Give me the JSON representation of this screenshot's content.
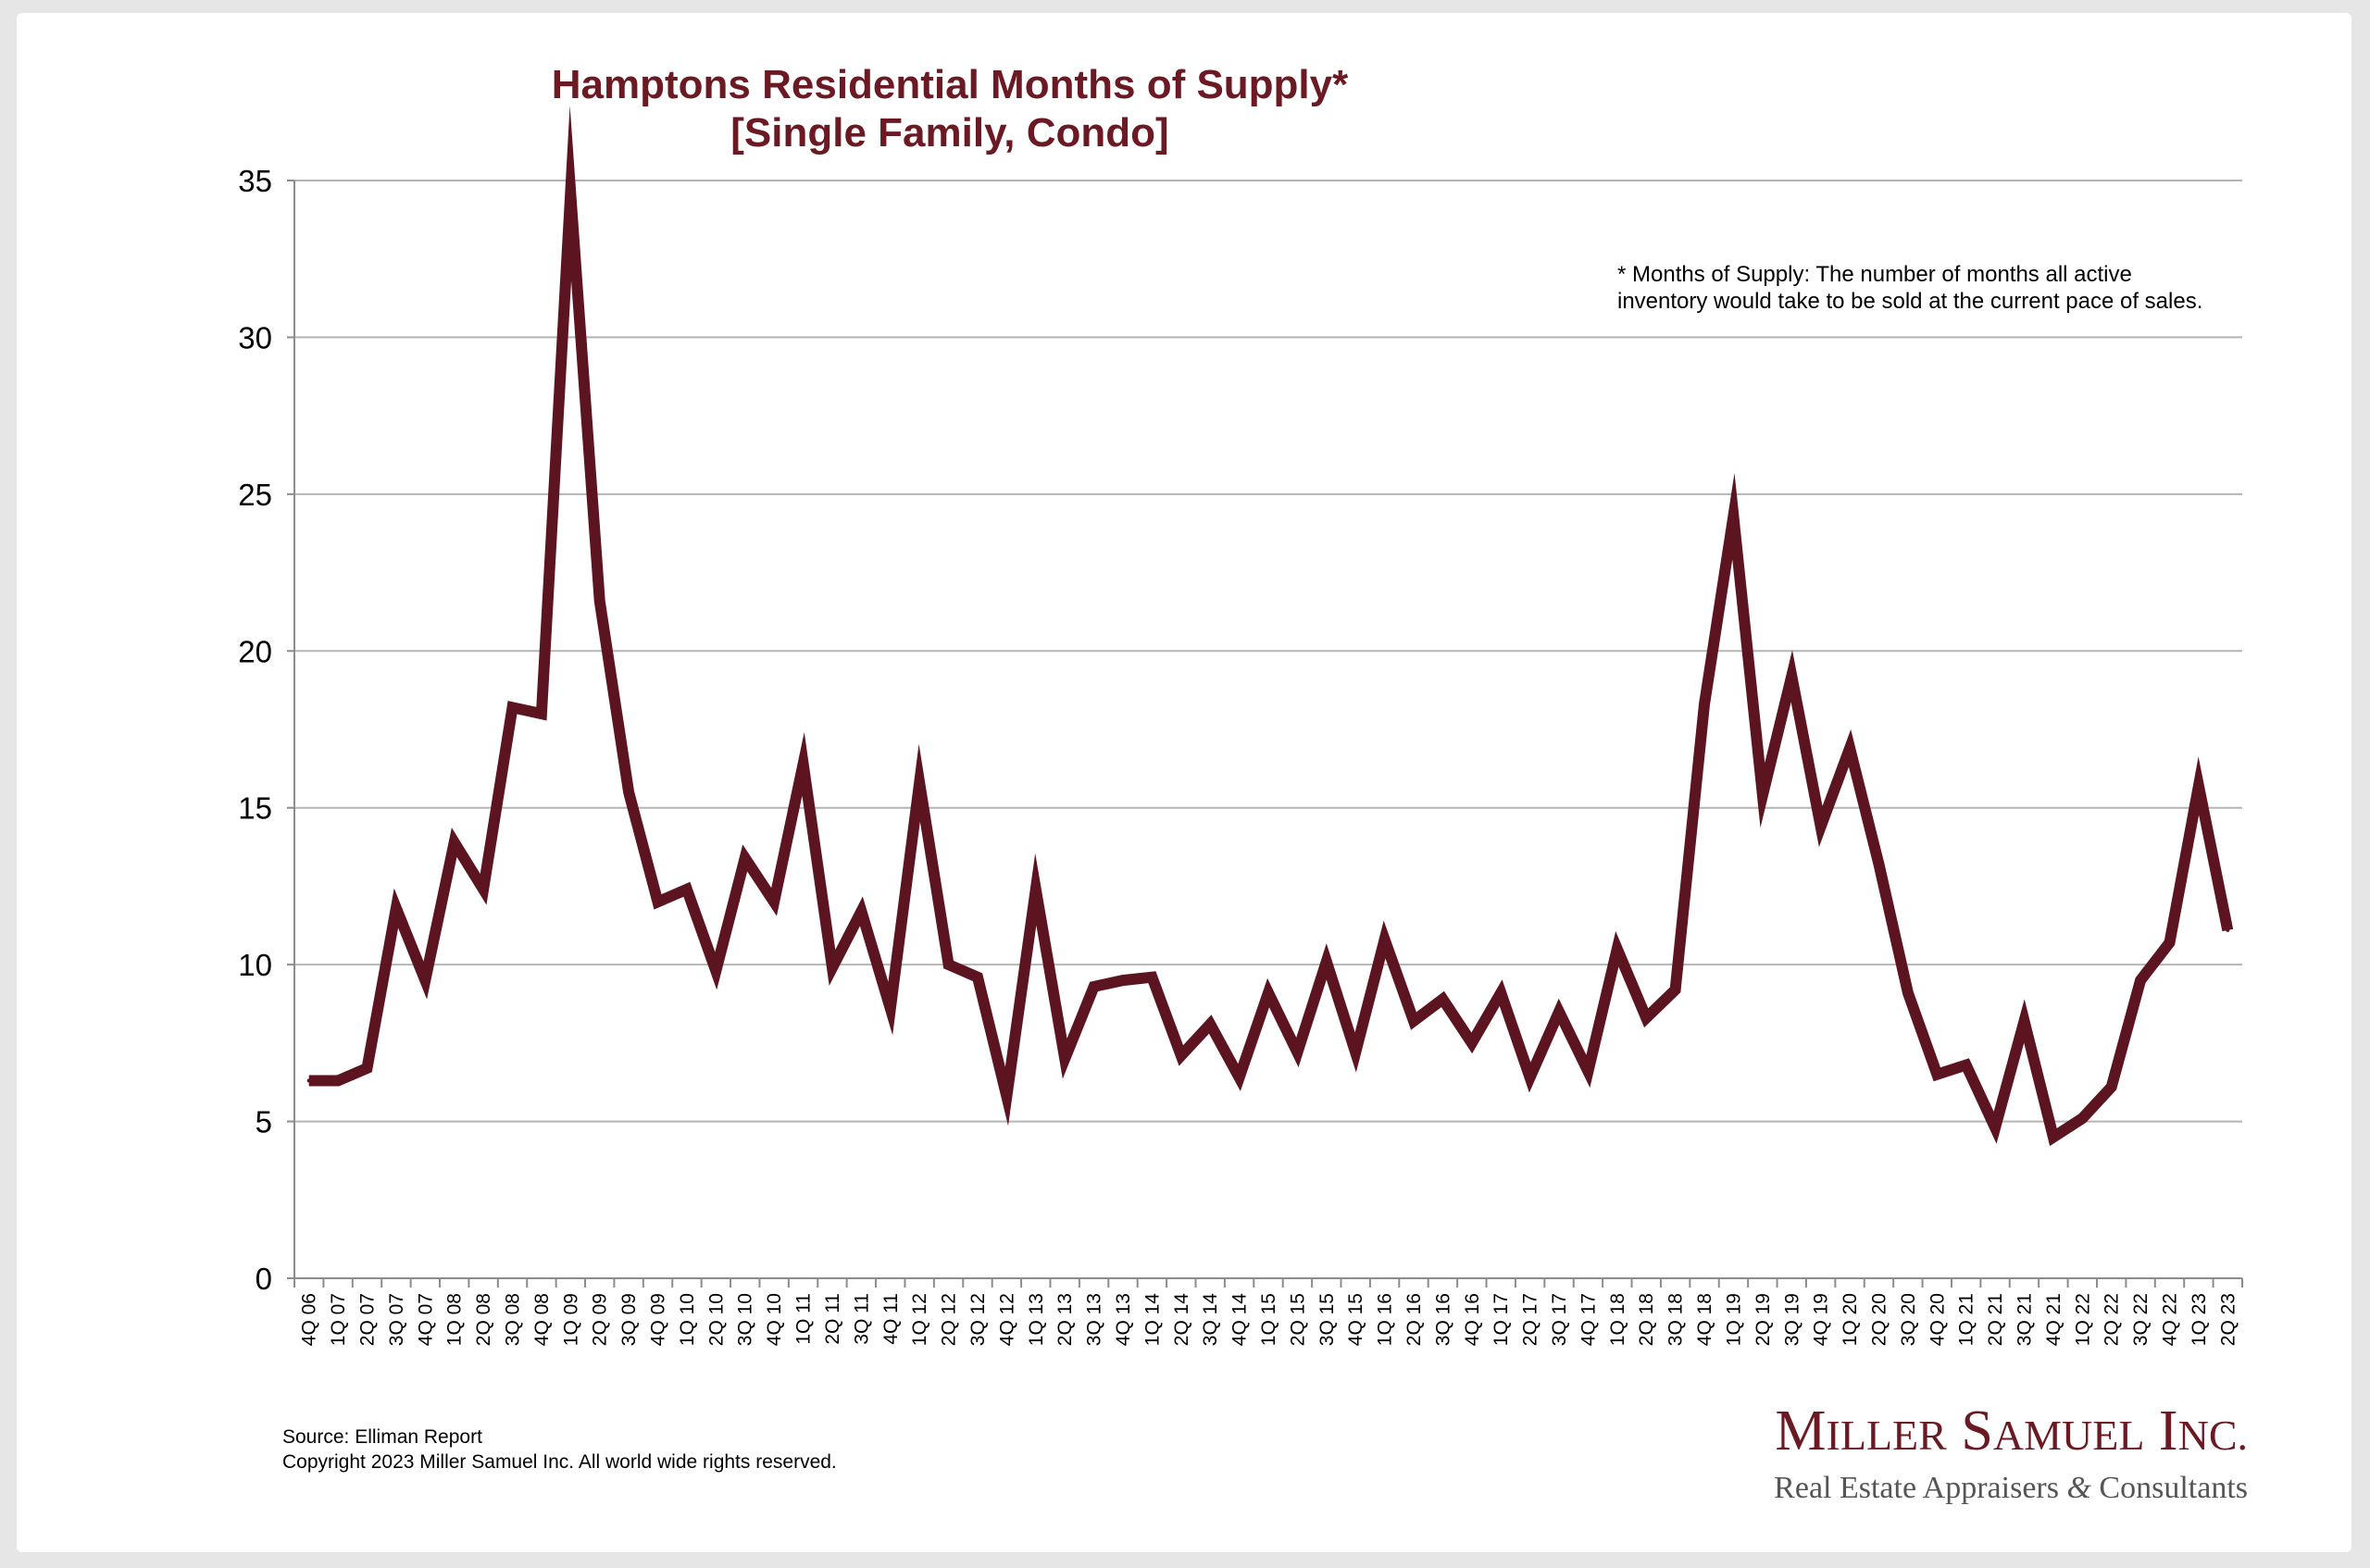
{
  "chart_data": {
    "type": "line",
    "title": [
      "Hamptons Residential Months of Supply*",
      "[Single Family, Condo]"
    ],
    "xlabel": "",
    "ylabel": "",
    "ylim": [
      0,
      35
    ],
    "yticks": [
      0,
      5,
      10,
      15,
      20,
      25,
      30,
      35
    ],
    "grid": true,
    "line_color": "#5c1420",
    "categories": [
      "4Q 06",
      "1Q 07",
      "2Q 07",
      "3Q 07",
      "4Q 07",
      "1Q 08",
      "2Q 08",
      "3Q 08",
      "4Q 08",
      "1Q 09",
      "2Q 09",
      "3Q 09",
      "4Q 09",
      "1Q 10",
      "2Q 10",
      "3Q 10",
      "4Q 10",
      "1Q 11",
      "2Q 11",
      "3Q 11",
      "4Q 11",
      "1Q 12",
      "2Q 12",
      "3Q 12",
      "4Q 12",
      "1Q 13",
      "2Q 13",
      "3Q 13",
      "4Q 13",
      "1Q 14",
      "2Q 14",
      "3Q 14",
      "4Q 14",
      "1Q 15",
      "2Q 15",
      "3Q 15",
      "4Q 15",
      "1Q 16",
      "2Q 16",
      "3Q 16",
      "4Q 16",
      "1Q 17",
      "2Q 17",
      "3Q 17",
      "4Q 17",
      "1Q 18",
      "2Q 18",
      "3Q 18",
      "4Q 18",
      "1Q 19",
      "2Q 19",
      "3Q 19",
      "4Q 19",
      "1Q 20",
      "2Q 20",
      "3Q 20",
      "4Q 20",
      "1Q 21",
      "2Q 21",
      "3Q 21",
      "4Q 21",
      "1Q 22",
      "2Q 22",
      "3Q 22",
      "4Q 22",
      "1Q 23",
      "2Q 23"
    ],
    "values": [
      6.3,
      6.3,
      6.7,
      11.8,
      9.5,
      13.9,
      12.4,
      18.2,
      18.0,
      34.6,
      21.6,
      15.5,
      12.0,
      12.4,
      9.8,
      13.4,
      12.0,
      16.4,
      9.9,
      11.7,
      8.6,
      15.8,
      10.0,
      9.6,
      5.8,
      12.4,
      7.0,
      9.3,
      9.5,
      9.6,
      7.1,
      8.1,
      6.4,
      9.1,
      7.2,
      10.1,
      7.2,
      10.8,
      8.2,
      8.9,
      7.5,
      9.1,
      6.4,
      8.5,
      6.6,
      10.5,
      8.3,
      9.2,
      18.3,
      24.3,
      15.4,
      19.2,
      14.4,
      16.9,
      13.2,
      9.1,
      6.5,
      6.8,
      4.8,
      8.2,
      4.5,
      5.1,
      6.1,
      9.5,
      10.7,
      15.7,
      11.1
    ],
    "annotation": [
      "* Months of Supply: The number of months all active",
      "inventory would take to be sold at the current pace of sales."
    ]
  },
  "footer": {
    "source": "Source: Elliman Report",
    "copyright": "Copyright 2023 Miller Samuel Inc.  All world wide rights reserved."
  },
  "logo": {
    "name": "Miller Samuel Inc.",
    "tagline": "Real Estate Appraisers & Consultants"
  }
}
